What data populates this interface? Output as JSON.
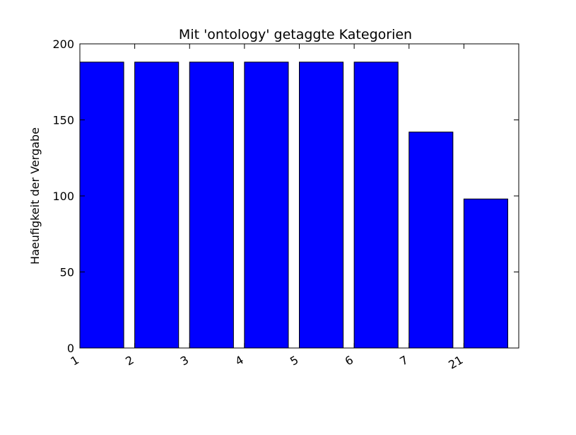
{
  "chart_data": {
    "type": "bar",
    "title": "Mit 'ontology' getaggte Kategorien",
    "xlabel": "",
    "ylabel": "Haeufigkeit der Vergabe",
    "categories": [
      "1",
      "2",
      "3",
      "4",
      "5",
      "6",
      "7",
      "21"
    ],
    "values": [
      188,
      188,
      188,
      188,
      188,
      188,
      142,
      98
    ],
    "ylim": [
      0,
      200
    ],
    "yticks": [
      0,
      50,
      100,
      150,
      200
    ],
    "grid": false,
    "legend": "none",
    "bar_color": "#0000ff",
    "edge_color": "#000000"
  }
}
